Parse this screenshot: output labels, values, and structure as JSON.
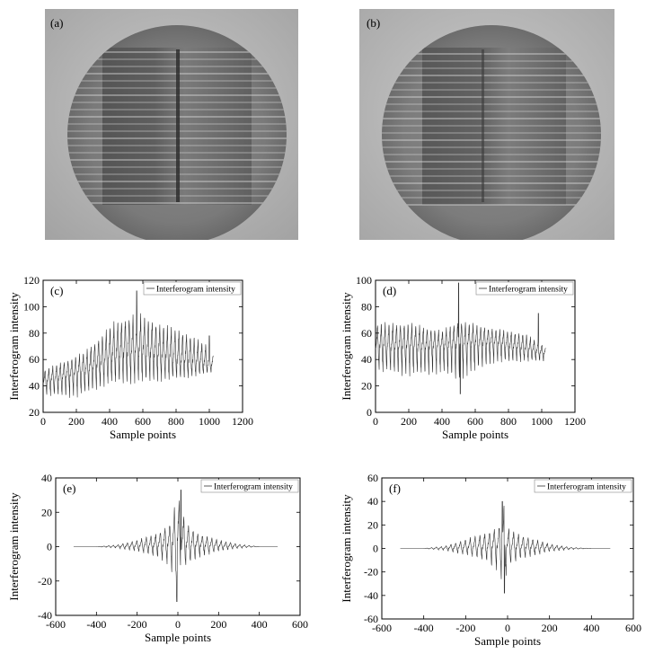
{
  "photos": [
    {
      "label": "(a)"
    },
    {
      "label": "(b)"
    }
  ],
  "chart_data": [
    {
      "id": "c",
      "type": "line",
      "label": "(c)",
      "title": "",
      "xlabel": "Sample points",
      "ylabel": "Interferogram intensity",
      "xlim": [
        0,
        1200
      ],
      "ylim": [
        20,
        120
      ],
      "xticks": [
        0,
        200,
        400,
        600,
        800,
        1000,
        1200
      ],
      "yticks": [
        20,
        40,
        60,
        80,
        100,
        120
      ],
      "legend": "top-right",
      "series": [
        {
          "name": "Interferogram intensity",
          "color": "#333333",
          "x_range": [
            0,
            1023
          ],
          "n_points": 1024,
          "period": 23,
          "baseline": [
            [
              0,
              42
            ],
            [
              250,
              50
            ],
            [
              450,
              62
            ],
            [
              600,
              64
            ],
            [
              800,
              58
            ],
            [
              1023,
              55
            ]
          ],
          "upper_envelope": [
            [
              0,
              52
            ],
            [
              250,
              66
            ],
            [
              420,
              88
            ],
            [
              560,
              96
            ],
            [
              700,
              88
            ],
            [
              850,
              82
            ],
            [
              1000,
              70
            ],
            [
              1023,
              65
            ]
          ],
          "lower_envelope": [
            [
              0,
              32
            ],
            [
              200,
              30
            ],
            [
              400,
              40
            ],
            [
              560,
              40
            ],
            [
              700,
              42
            ],
            [
              900,
              46
            ],
            [
              1023,
              50
            ]
          ],
          "spikes": [
            [
              563,
              112
            ],
            [
              1000,
              78
            ]
          ]
        }
      ]
    },
    {
      "id": "d",
      "type": "line",
      "label": "(d)",
      "title": "",
      "xlabel": "Sample points",
      "ylabel": "Interferogram intensity",
      "xlim": [
        0,
        1200
      ],
      "ylim": [
        0,
        100
      ],
      "xticks": [
        0,
        200,
        400,
        600,
        800,
        1000,
        1200
      ],
      "yticks": [
        0,
        20,
        40,
        60,
        80,
        100
      ],
      "legend": "top-right",
      "series": [
        {
          "name": "Interferogram intensity",
          "color": "#333333",
          "x_range": [
            0,
            1023
          ],
          "n_points": 1024,
          "period": 23,
          "baseline": [
            [
              0,
              48
            ],
            [
              300,
              48
            ],
            [
              500,
              50
            ],
            [
              700,
              52
            ],
            [
              900,
              47
            ],
            [
              1023,
              44
            ]
          ],
          "upper_envelope": [
            [
              0,
              68
            ],
            [
              200,
              68
            ],
            [
              400,
              62
            ],
            [
              500,
              70
            ],
            [
              700,
              64
            ],
            [
              900,
              60
            ],
            [
              1023,
              50
            ]
          ],
          "lower_envelope": [
            [
              0,
              30
            ],
            [
              200,
              26
            ],
            [
              400,
              28
            ],
            [
              500,
              22
            ],
            [
              700,
              36
            ],
            [
              900,
              38
            ],
            [
              1023,
              38
            ]
          ],
          "spikes": [
            [
              500,
              98
            ],
            [
              510,
              14
            ],
            [
              980,
              75
            ]
          ]
        }
      ]
    },
    {
      "id": "e",
      "type": "line",
      "label": "(e)",
      "title": "",
      "xlabel": "Sample points",
      "ylabel": "Interferogram intensity",
      "xlim": [
        -600,
        600
      ],
      "ylim": [
        -40,
        40
      ],
      "xticks": [
        -600,
        -400,
        -200,
        0,
        200,
        400,
        600
      ],
      "yticks": [
        -40,
        -20,
        0,
        20,
        40
      ],
      "legend": "top-right",
      "series": [
        {
          "name": "Interferogram intensity",
          "color": "#333333",
          "x_range": [
            -512,
            490
          ],
          "n_points": 1003,
          "period": 23,
          "baseline": [
            [
              -512,
              0
            ],
            [
              490,
              0
            ]
          ],
          "upper_envelope": [
            [
              -512,
              0
            ],
            [
              -400,
              0
            ],
            [
              -300,
              1
            ],
            [
              -200,
              4
            ],
            [
              -100,
              8
            ],
            [
              -40,
              14
            ],
            [
              0,
              30
            ],
            [
              40,
              14
            ],
            [
              100,
              8
            ],
            [
              200,
              4
            ],
            [
              300,
              1.5
            ],
            [
              400,
              0
            ],
            [
              490,
              0
            ]
          ],
          "lower_envelope": [
            [
              -512,
              0
            ],
            [
              -400,
              0
            ],
            [
              -300,
              -1
            ],
            [
              -200,
              -3
            ],
            [
              -100,
              -7
            ],
            [
              -40,
              -12
            ],
            [
              0,
              -32
            ],
            [
              40,
              -12
            ],
            [
              100,
              -7
            ],
            [
              200,
              -3
            ],
            [
              300,
              -1
            ],
            [
              400,
              0
            ],
            [
              490,
              0
            ]
          ],
          "spikes": [
            [
              15,
              33
            ],
            [
              -5,
              -32
            ]
          ]
        }
      ]
    },
    {
      "id": "f",
      "type": "line",
      "label": "(f)",
      "title": "",
      "xlabel": "Sample points",
      "ylabel": "Interferogram intensity",
      "xlim": [
        -600,
        600
      ],
      "ylim": [
        -60,
        60
      ],
      "xticks": [
        -600,
        -400,
        -200,
        0,
        200,
        400,
        600
      ],
      "yticks": [
        -60,
        -40,
        -20,
        0,
        20,
        40,
        60
      ],
      "legend": "top-right",
      "series": [
        {
          "name": "Interferogram intensity",
          "color": "#333333",
          "x_range": [
            -512,
            490
          ],
          "n_points": 1003,
          "period": 23,
          "baseline": [
            [
              -512,
              0
            ],
            [
              490,
              0
            ]
          ],
          "upper_envelope": [
            [
              -512,
              0
            ],
            [
              -400,
              0
            ],
            [
              -300,
              2
            ],
            [
              -200,
              8
            ],
            [
              -100,
              14
            ],
            [
              -40,
              20
            ],
            [
              -20,
              40
            ],
            [
              0,
              18
            ],
            [
              60,
              12
            ],
            [
              100,
              10
            ],
            [
              200,
              4
            ],
            [
              300,
              1
            ],
            [
              400,
              0
            ],
            [
              490,
              0
            ]
          ],
          "lower_envelope": [
            [
              -512,
              0
            ],
            [
              -400,
              0
            ],
            [
              -300,
              -2
            ],
            [
              -200,
              -6
            ],
            [
              -100,
              -12
            ],
            [
              -40,
              -22
            ],
            [
              -20,
              -38
            ],
            [
              0,
              -18
            ],
            [
              60,
              -10
            ],
            [
              100,
              -8
            ],
            [
              200,
              -3
            ],
            [
              300,
              -1
            ],
            [
              400,
              0
            ],
            [
              490,
              0
            ]
          ],
          "spikes": [
            [
              -25,
              40
            ],
            [
              -15,
              -38
            ]
          ]
        }
      ]
    }
  ]
}
